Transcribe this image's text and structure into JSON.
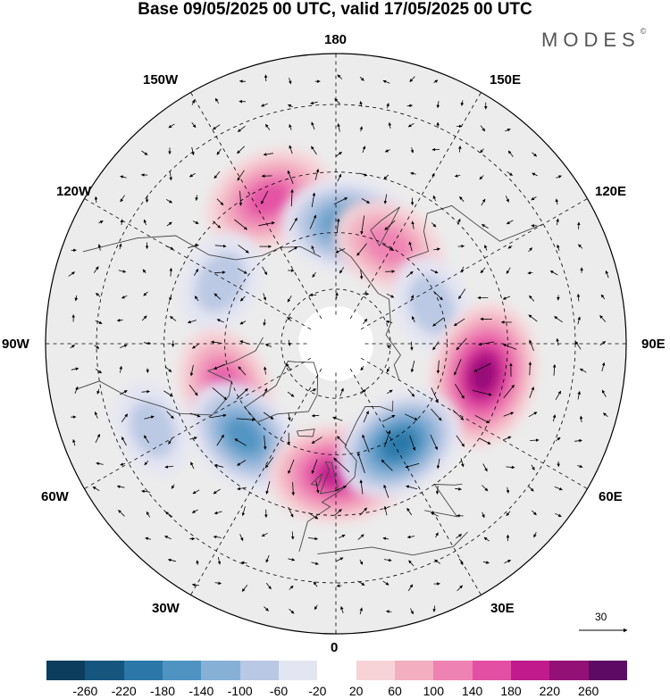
{
  "title": "Base 09/05/2025 00 UTC, valid 17/05/2025 00 UTC",
  "brand": "MODES",
  "brand_mark": "©",
  "longitude_labels": {
    "top": "180",
    "bottom": "0",
    "left": "90W",
    "right": "90E",
    "upper_left_1": "150W",
    "upper_left_2": "120W",
    "upper_right_1": "150E",
    "upper_right_2": "120E",
    "lower_left_1": "60W",
    "lower_left_2": "30W",
    "lower_right_1": "60E",
    "lower_right_2": "30E"
  },
  "reference_vector": {
    "value": "30"
  },
  "colorbar": {
    "ticks": [
      "-260",
      "-220",
      "-180",
      "-140",
      "-100",
      "-60",
      "-20",
      "20",
      "60",
      "100",
      "140",
      "180",
      "220",
      "260"
    ],
    "colors": [
      "#0d3d5c",
      "#16567e",
      "#2a77a8",
      "#4f93c2",
      "#86b0d6",
      "#b9c8e4",
      "#e4e5f2",
      "#ffffff",
      "#f7d3d8",
      "#f3aec0",
      "#ee82b3",
      "#e350a3",
      "#c11a8c",
      "#931077",
      "#5c0a63"
    ]
  },
  "map_data": {
    "projection": "north polar stereographic",
    "field": "anomaly with wind vectors",
    "anomaly_centres": [
      {
        "lon": -155,
        "lat": 48,
        "value": 170
      },
      {
        "lon": 175,
        "lat": 58,
        "value": -170
      },
      {
        "lon": 152,
        "lat": 60,
        "value": 130
      },
      {
        "lon": -118,
        "lat": 55,
        "value": -90
      },
      {
        "lon": 112,
        "lat": 62,
        "value": -80
      },
      {
        "lon": 78,
        "lat": 50,
        "value": 220
      },
      {
        "lon": -68,
        "lat": 58,
        "value": 150
      },
      {
        "lon": -45,
        "lat": 55,
        "value": -160
      },
      {
        "lon": 0,
        "lat": 55,
        "value": 190
      },
      {
        "lon": 32,
        "lat": 58,
        "value": -180
      },
      {
        "lon": -65,
        "lat": 38,
        "value": -70
      }
    ]
  }
}
